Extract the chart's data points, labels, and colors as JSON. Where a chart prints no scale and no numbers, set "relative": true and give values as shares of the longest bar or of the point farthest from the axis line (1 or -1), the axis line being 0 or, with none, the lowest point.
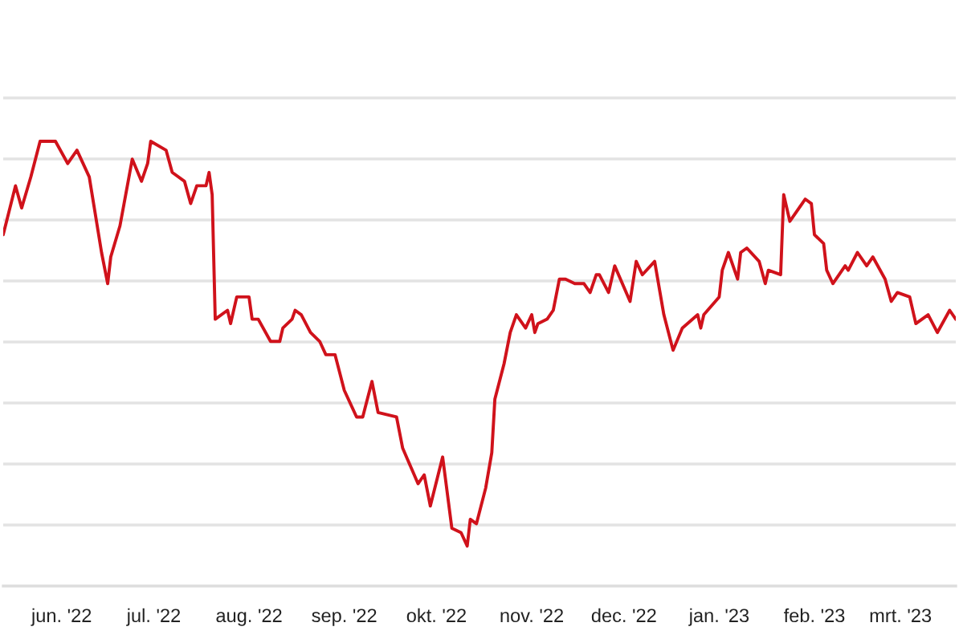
{
  "chart_data": {
    "type": "line",
    "relative": true,
    "grid": "y",
    "line_style": "solid",
    "xlim": [
      "2022-05-13",
      "2023-03-19"
    ],
    "xticks": [
      {
        "value": "2022-06-01",
        "label": "jun. '22"
      },
      {
        "value": "2022-07-01",
        "label": "jul. '22"
      },
      {
        "value": "2022-08-01",
        "label": "aug. '22"
      },
      {
        "value": "2022-09-01",
        "label": "sep. '22"
      },
      {
        "value": "2022-10-01",
        "label": "okt. '22"
      },
      {
        "value": "2022-11-01",
        "label": "nov. '22"
      },
      {
        "value": "2022-12-01",
        "label": "dec. '22"
      },
      {
        "value": "2023-01-01",
        "label": "jan. '23"
      },
      {
        "value": "2023-02-01",
        "label": "feb. '23"
      },
      {
        "value": "2023-03-01",
        "label": "mrt. '23"
      }
    ],
    "x": [
      "2022-05-13",
      "2022-05-17",
      "2022-05-19",
      "2022-05-22",
      "2022-05-25",
      "2022-05-30",
      "2022-06-03",
      "2022-06-06",
      "2022-06-10",
      "2022-06-14",
      "2022-06-16",
      "2022-06-17",
      "2022-06-20",
      "2022-06-24",
      "2022-06-27",
      "2022-06-29",
      "2022-06-30",
      "2022-07-05",
      "2022-07-07",
      "2022-07-11",
      "2022-07-13",
      "2022-07-15",
      "2022-07-18",
      "2022-07-19",
      "2022-07-20",
      "2022-07-21",
      "2022-07-25",
      "2022-07-26",
      "2022-07-28",
      "2022-08-01",
      "2022-08-02",
      "2022-08-04",
      "2022-08-08",
      "2022-08-11",
      "2022-08-12",
      "2022-08-15",
      "2022-08-16",
      "2022-08-18",
      "2022-08-21",
      "2022-08-24",
      "2022-08-26",
      "2022-08-29",
      "2022-09-01",
      "2022-09-05",
      "2022-09-07",
      "2022-09-10",
      "2022-09-12",
      "2022-09-18",
      "2022-09-20",
      "2022-09-25",
      "2022-09-27",
      "2022-09-29",
      "2022-10-03",
      "2022-10-06",
      "2022-10-09",
      "2022-10-11",
      "2022-10-12",
      "2022-10-14",
      "2022-10-17",
      "2022-10-19",
      "2022-10-20",
      "2022-10-23",
      "2022-10-25",
      "2022-10-27",
      "2022-10-30",
      "2022-11-01",
      "2022-11-02",
      "2022-11-03",
      "2022-11-06",
      "2022-11-08",
      "2022-11-10",
      "2022-11-12",
      "2022-11-15",
      "2022-11-18",
      "2022-11-20",
      "2022-11-22",
      "2022-11-23",
      "2022-11-26",
      "2022-11-28",
      "2022-12-03",
      "2022-12-05",
      "2022-12-07",
      "2022-12-11",
      "2022-12-14",
      "2022-12-17",
      "2022-12-20",
      "2022-12-25",
      "2022-12-26",
      "2022-12-27",
      "2023-01-01",
      "2023-01-02",
      "2023-01-04",
      "2023-01-07",
      "2023-01-08",
      "2023-01-10",
      "2023-01-14",
      "2023-01-16",
      "2023-01-17",
      "2023-01-21",
      "2023-01-22",
      "2023-01-24",
      "2023-01-28",
      "2023-01-29",
      "2023-01-31",
      "2023-02-01",
      "2023-02-04",
      "2023-02-05",
      "2023-02-07",
      "2023-02-11",
      "2023-02-12",
      "2023-02-15",
      "2023-02-18",
      "2023-02-20",
      "2023-02-24",
      "2023-02-26",
      "2023-02-28",
      "2023-03-04",
      "2023-03-06",
      "2023-03-10",
      "2023-03-13",
      "2023-03-17",
      "2023-03-19"
    ],
    "series": [
      {
        "color": "#d0121b",
        "values": [
          0.79,
          0.9,
          0.85,
          0.92,
          1.0,
          1.0,
          0.95,
          0.98,
          0.92,
          0.75,
          0.68,
          0.74,
          0.81,
          0.96,
          0.91,
          0.95,
          1.0,
          0.98,
          0.93,
          0.91,
          0.86,
          0.9,
          0.9,
          0.93,
          0.88,
          0.6,
          0.62,
          0.59,
          0.65,
          0.65,
          0.6,
          0.6,
          0.55,
          0.55,
          0.58,
          0.6,
          0.62,
          0.61,
          0.57,
          0.55,
          0.52,
          0.52,
          0.44,
          0.38,
          0.38,
          0.46,
          0.39,
          0.38,
          0.31,
          0.23,
          0.25,
          0.18,
          0.29,
          0.13,
          0.12,
          0.09,
          0.15,
          0.14,
          0.22,
          0.3,
          0.42,
          0.5,
          0.57,
          0.61,
          0.58,
          0.61,
          0.57,
          0.59,
          0.6,
          0.62,
          0.69,
          0.69,
          0.68,
          0.68,
          0.66,
          0.7,
          0.7,
          0.66,
          0.72,
          0.64,
          0.73,
          0.7,
          0.73,
          0.61,
          0.53,
          0.58,
          0.61,
          0.58,
          0.61,
          0.65,
          0.71,
          0.75,
          0.69,
          0.75,
          0.76,
          0.73,
          0.68,
          0.71,
          0.7,
          0.88,
          0.82,
          0.86,
          0.87,
          0.86,
          0.79,
          0.77,
          0.71,
          0.68,
          0.72,
          0.71,
          0.75,
          0.72,
          0.74,
          0.69,
          0.64,
          0.66,
          0.65,
          0.59,
          0.61,
          0.57,
          0.62,
          0.6
        ]
      }
    ]
  }
}
